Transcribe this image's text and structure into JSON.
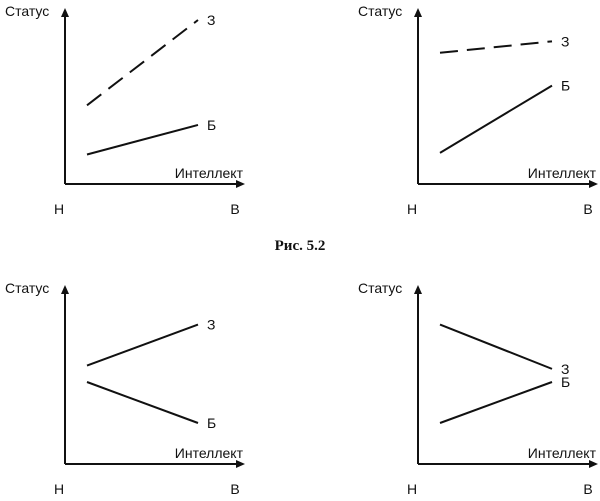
{
  "caption": "Рис. 5.2",
  "colors": {
    "ink": "#111111",
    "background": "#ffffff"
  },
  "chart_data": [
    {
      "type": "line",
      "ylabel": "Статус",
      "xlabel": "Интеллект",
      "categories": [
        "Н",
        "В"
      ],
      "series": [
        {
          "name": "З",
          "style": "dashed",
          "values": [
            0.48,
            1.0
          ]
        },
        {
          "name": "Б",
          "style": "solid",
          "values": [
            0.18,
            0.36
          ]
        }
      ]
    },
    {
      "type": "line",
      "ylabel": "Статус",
      "xlabel": "Интеллект",
      "categories": [
        "Н",
        "В"
      ],
      "series": [
        {
          "name": "З",
          "style": "dashed",
          "values": [
            0.8,
            0.87
          ]
        },
        {
          "name": "Б",
          "style": "solid",
          "values": [
            0.19,
            0.6
          ]
        }
      ]
    },
    {
      "type": "line",
      "ylabel": "Статус",
      "xlabel": "Интеллект",
      "categories": [
        "Н",
        "В"
      ],
      "series": [
        {
          "name": "З",
          "style": "solid",
          "values": [
            0.6,
            0.85
          ]
        },
        {
          "name": "Б",
          "style": "solid",
          "values": [
            0.5,
            0.25
          ]
        }
      ]
    },
    {
      "type": "line",
      "ylabel": "Статус",
      "xlabel": "Интеллект",
      "categories": [
        "Н",
        "В"
      ],
      "series": [
        {
          "name": "З",
          "style": "solid",
          "values": [
            0.85,
            0.58
          ]
        },
        {
          "name": "Б",
          "style": "solid",
          "values": [
            0.25,
            0.5
          ]
        }
      ]
    }
  ]
}
